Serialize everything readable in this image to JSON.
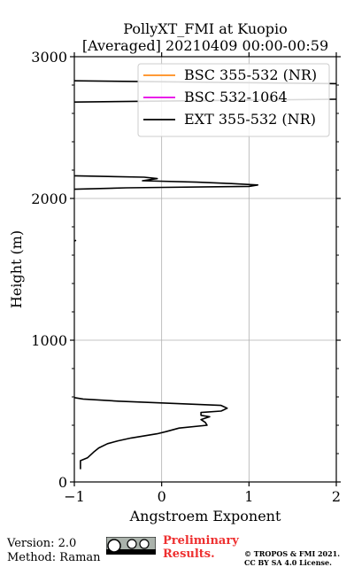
{
  "chart_data": {
    "type": "line",
    "title": "PollyXT_FMI at Kuopio",
    "subtitle": "[Averaged] 20210409 00:00-00:59",
    "xlabel": "Angstroem Exponent",
    "ylabel": "Height (m)",
    "xlim": [
      -1,
      2
    ],
    "ylim": [
      0,
      3000
    ],
    "xticks": [
      "−1",
      "0",
      "1",
      "2"
    ],
    "yticks": [
      "0",
      "1000",
      "2000",
      "3000"
    ],
    "grid": true,
    "legend_position": "top-right",
    "series": [
      {
        "name": "BSC 355-532 (NR)",
        "color": "#ff8c1a",
        "points": []
      },
      {
        "name": "BSC 532-1064",
        "color": "#e600e6",
        "points": []
      },
      {
        "name": "EXT 355-532 (NR)",
        "color": "#000000",
        "segments": [
          [
            [
              -0.93,
              90
            ],
            [
              -0.93,
              150
            ],
            [
              -0.85,
              170
            ],
            [
              -0.78,
              210
            ],
            [
              -0.72,
              240
            ],
            [
              -0.62,
              270
            ],
            [
              -0.5,
              290
            ],
            [
              -0.35,
              310
            ],
            [
              -0.05,
              340
            ],
            [
              0.05,
              355
            ],
            [
              0.2,
              380
            ],
            [
              0.52,
              400
            ],
            [
              0.5,
              420
            ],
            [
              0.45,
              440
            ],
            [
              0.55,
              460
            ],
            [
              0.45,
              470
            ],
            [
              0.45,
              490
            ],
            [
              0.68,
              500
            ],
            [
              0.75,
              520
            ],
            [
              0.68,
              540
            ],
            [
              -0.5,
              570
            ],
            [
              -0.9,
              585
            ],
            [
              -1.0,
              595
            ]
          ],
          [
            [
              -1.0,
              1700
            ],
            [
              -0.98,
              1705
            ]
          ],
          [
            [
              -1.0,
              2065
            ],
            [
              -0.4,
              2075
            ],
            [
              1.0,
              2085
            ],
            [
              1.1,
              2095
            ],
            [
              0.8,
              2105
            ],
            [
              0.4,
              2115
            ],
            [
              -0.22,
              2125
            ],
            [
              -0.05,
              2140
            ],
            [
              -0.2,
              2150
            ],
            [
              -1.0,
              2160
            ]
          ],
          [
            [
              -1.0,
              2680
            ],
            [
              2.0,
              2700
            ]
          ],
          [
            [
              -1.0,
              2830
            ],
            [
              2.0,
              2810
            ]
          ]
        ]
      }
    ]
  },
  "footer": {
    "version": "Version: 2.0",
    "method": "Method: Raman",
    "preliminary_line1": "Preliminary",
    "preliminary_line2": "Results.",
    "copyright_line1": "© TROPOS & FMI 2021.",
    "copyright_line2": "CC BY SA 4.0 License."
  }
}
